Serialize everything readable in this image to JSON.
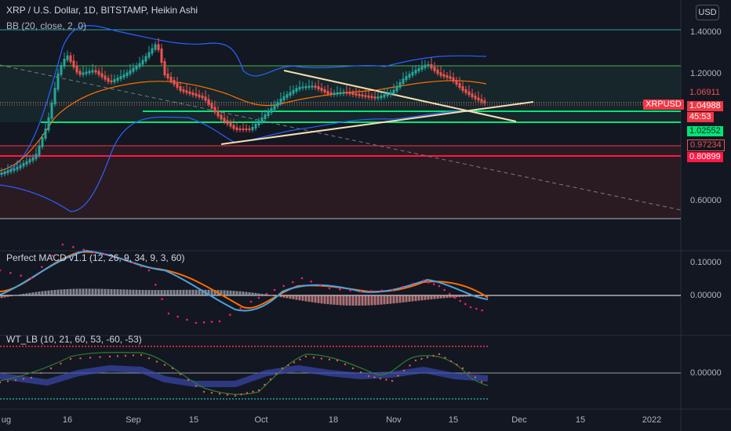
{
  "header": {
    "symbol_line": "XRP / U.S. Dollar, 1D, BITSTAMP, Heikin Ashi",
    "bb_line": "BB (20, close, 2, 0)",
    "currency_button": "USD"
  },
  "panes": {
    "macd_title": "Perfect MACD v1.1 (12, 26, 9, 34, 9, 3, 60)",
    "wt_title": "WT_LB (10, 21, 60, 53, -60, -53)"
  },
  "price_axis": {
    "labels": [
      "1.40000",
      "1.20000",
      "0.60000"
    ],
    "macd_labels": [
      "0.10000",
      "0.00000"
    ],
    "wt_labels": [
      "0.00000"
    ]
  },
  "tags": {
    "t1": "1.06911",
    "symbol": "XRPUSD",
    "t2": "1.04988",
    "countdown": "45:53",
    "t3": "1.02552",
    "t4": "0.97234",
    "t5": "0.80899"
  },
  "time_axis": [
    "ug",
    "16",
    "Sep",
    "15",
    "Oct",
    "18",
    "Nov",
    "15",
    "Dec",
    "15",
    "2022"
  ],
  "colors": {
    "background": "#131722",
    "bull": "#26a69a",
    "bear": "#ef5350",
    "bb_band": "#2962ff",
    "bb_basis": "#ff6d00",
    "green_line": "#00e676",
    "red_line": "#f23645",
    "trend": "#f5deb3"
  }
}
